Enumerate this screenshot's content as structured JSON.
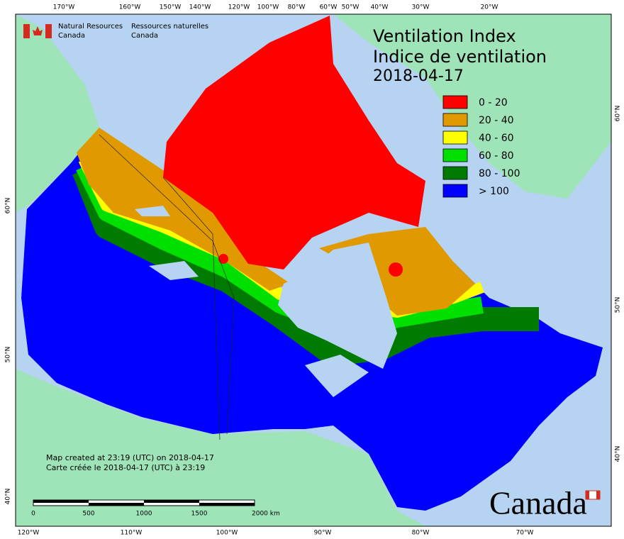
{
  "header": {
    "org_en": [
      "Natural Resources",
      "Canada"
    ],
    "org_fr": [
      "Ressources naturelles",
      "Canada"
    ]
  },
  "title": {
    "en": "Ventilation Index",
    "fr": "Indice de ventilation",
    "date": "2018-04-17"
  },
  "legend": [
    {
      "label": "0 - 20",
      "color": "#ff0000"
    },
    {
      "label": "20 - 40",
      "color": "#e09a00"
    },
    {
      "label": "40 - 60",
      "color": "#ffff00"
    },
    {
      "label": "60 - 80",
      "color": "#00e000"
    },
    {
      "label": "80 - 100",
      "color": "#007a00"
    },
    {
      "label": "> 100",
      "color": "#0000ff"
    }
  ],
  "credits": [
    "Map created at 23:19 (UTC) on 2018-04-17",
    "Carte créée le 2018-04-17 (UTC) à 23:19"
  ],
  "scale_bar": [
    "0",
    "500",
    "1000",
    "1500",
    "2000 km"
  ],
  "graticule": {
    "top": [
      "170°W",
      "160°W",
      "150°W",
      "140°W",
      "120°W",
      "100°W",
      "80°W",
      "60°W",
      "50°W",
      "40°W",
      "30°W",
      "20°W"
    ],
    "bottom": [
      "120°W",
      "110°W",
      "100°W",
      "90°W",
      "80°W",
      "70°W"
    ],
    "left": [
      "60°N",
      "50°N",
      "40°N"
    ],
    "right": [
      "60°N",
      "50°N",
      "40°N"
    ]
  },
  "wordmark": "Canada"
}
